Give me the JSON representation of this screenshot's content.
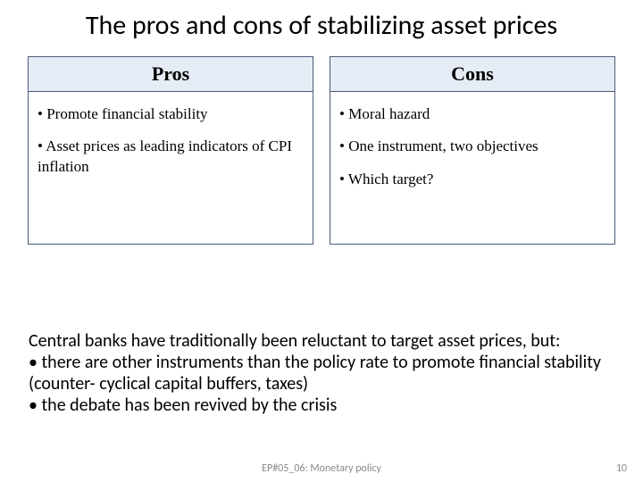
{
  "title": "The pros and cons of stabilizing asset prices",
  "colors": {
    "header_bg": "#e6ecf5",
    "border": "#4a5a7a",
    "text": "#000000",
    "footer": "#8a8a8a",
    "background": "#ffffff"
  },
  "columns": {
    "pros": {
      "header": "Pros",
      "items": [
        "Promote financial stability",
        "Asset prices as leading indicators of CPI inflation"
      ]
    },
    "cons": {
      "header": "Cons",
      "items": [
        "Moral hazard",
        "One instrument, two objectives",
        "Which target?"
      ]
    }
  },
  "notes": {
    "lead": "Central banks have traditionally been reluctant to target asset prices, but:",
    "bullets": [
      "there are other instruments than the policy rate to promote financial stability (counter- cyclical capital buffers, taxes)",
      "the debate has been revived by the crisis"
    ]
  },
  "footer": {
    "center": "EP#05_06: Monetary policy",
    "page": "10"
  }
}
